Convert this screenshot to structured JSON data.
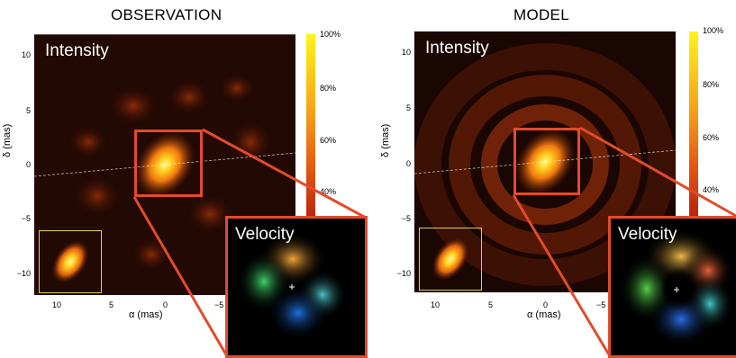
{
  "panels": [
    {
      "title": "OBSERVATION",
      "intensity_label": "Intensity",
      "velocity_label": "Velocity",
      "y_axis_label": "δ (mas)",
      "x_axis_label": "α (mas)",
      "y_ticks": [
        "10",
        "5",
        "0",
        "−5",
        "−10"
      ],
      "x_ticks": [
        "10",
        "5",
        "0",
        "−5"
      ],
      "colorbar_ticks": [
        "100%",
        "80%",
        "60%",
        "40%"
      ]
    },
    {
      "title": "MODEL",
      "intensity_label": "Intensity",
      "velocity_label": "Velocity",
      "y_axis_label": "δ (mas)",
      "x_axis_label": "α (mas)",
      "y_ticks": [
        "10",
        "5",
        "0",
        "−5",
        "−10"
      ],
      "x_ticks": [
        "10",
        "5",
        "0",
        "−5"
      ],
      "colorbar_ticks": [
        "100%",
        "80%",
        "60%",
        "40%"
      ]
    }
  ],
  "colors": {
    "highlight_box": "#e34b2b",
    "beam_box": "#d7d44a",
    "colorbar_top": "#fff419",
    "colorbar_bottom": "#b4200a"
  }
}
